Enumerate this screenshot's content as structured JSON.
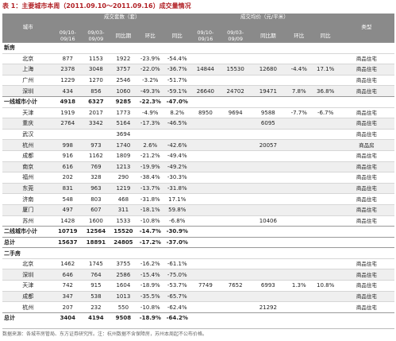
{
  "title": "表 1：主要城市本周（2011.09.10～2011.09.16）成交量情况",
  "header": {
    "city": "城市",
    "vol_group": "成交套数（套）",
    "price_group": "成交均价（元/平米）",
    "type": "类型",
    "period_a": "09/10-\n09/16",
    "period_b": "09/03-\n09/09",
    "yoy_period": "同比期",
    "wow": "环比",
    "yoy": "同比",
    "pa_price": "09/10-\n09/16",
    "pb_price": "09/03-\n09/09",
    "yoy_period_price": "同比期",
    "wow_price": "环比",
    "yoy_price": "同比"
  },
  "sections": [
    {
      "label": "新房",
      "rows": [
        [
          "北京",
          "877",
          "1153",
          "1922",
          "-23.9%",
          "-54.4%",
          "",
          "",
          "",
          "",
          "",
          "商品住宅"
        ],
        [
          "上海",
          "2378",
          "3048",
          "3757",
          "-22.0%",
          "-36.7%",
          "14844",
          "15530",
          "12680",
          "-4.4%",
          "17.1%",
          "商品住宅"
        ],
        [
          "广州",
          "1229",
          "1270",
          "2546",
          "-3.2%",
          "-51.7%",
          "",
          "",
          "",
          "",
          "",
          "商品住宅"
        ],
        [
          "深圳",
          "434",
          "856",
          "1060",
          "-49.3%",
          "-59.1%",
          "26640",
          "24702",
          "19471",
          "7.8%",
          "36.8%",
          "商品住宅"
        ]
      ],
      "subtotal": [
        "一线城市小计",
        "4918",
        "6327",
        "9285",
        "-22.3%",
        "-47.0%",
        "",
        "",
        "",
        "",
        "",
        ""
      ],
      "rows2": [
        [
          "天津",
          "1919",
          "2017",
          "1773",
          "-4.9%",
          "8.2%",
          "8950",
          "9694",
          "9588",
          "-7.7%",
          "-6.7%",
          "商品住宅"
        ],
        [
          "重庆",
          "2764",
          "3342",
          "5164",
          "-17.3%",
          "-46.5%",
          "",
          "",
          "6095",
          "",
          "",
          "商品住宅"
        ],
        [
          "武汉",
          "",
          "",
          "3694",
          "",
          "",
          "",
          "",
          "",
          "",
          "",
          "商品住宅"
        ],
        [
          "杭州",
          "998",
          "973",
          "1740",
          "2.6%",
          "-42.6%",
          "",
          "",
          "20057",
          "",
          "",
          "商品房"
        ],
        [
          "成都",
          "916",
          "1162",
          "1809",
          "-21.2%",
          "-49.4%",
          "",
          "",
          "",
          "",
          "",
          "商品住宅"
        ],
        [
          "南京",
          "616",
          "769",
          "1213",
          "-19.9%",
          "-49.2%",
          "",
          "",
          "",
          "",
          "",
          "商品住宅"
        ],
        [
          "福州",
          "202",
          "328",
          "290",
          "-38.4%",
          "-30.3%",
          "",
          "",
          "",
          "",
          "",
          "商品住宅"
        ],
        [
          "东莞",
          "831",
          "963",
          "1219",
          "-13.7%",
          "-31.8%",
          "",
          "",
          "",
          "",
          "",
          "商品住宅"
        ],
        [
          "济南",
          "548",
          "803",
          "468",
          "-31.8%",
          "17.1%",
          "",
          "",
          "",
          "",
          "",
          "商品住宅"
        ],
        [
          "厦门",
          "497",
          "607",
          "311",
          "-18.1%",
          "59.8%",
          "",
          "",
          "",
          "",
          "",
          "商品住宅"
        ],
        [
          "苏州",
          "1428",
          "1600",
          "1533",
          "-10.8%",
          "-6.8%",
          "",
          "",
          "10406",
          "",
          "",
          "商品住宅"
        ]
      ],
      "subtotal2": [
        "二线城市小计",
        "10719",
        "12564",
        "15520",
        "-14.7%",
        "-30.9%",
        "",
        "",
        "",
        "",
        "",
        ""
      ],
      "total": [
        "总计",
        "15637",
        "18891",
        "24805",
        "-17.2%",
        "-37.0%",
        "",
        "",
        "",
        "",
        "",
        ""
      ]
    },
    {
      "label": "二手房",
      "rows": [
        [
          "北京",
          "1462",
          "1745",
          "3755",
          "-16.2%",
          "-61.1%",
          "",
          "",
          "",
          "",
          "",
          "商品住宅"
        ],
        [
          "深圳",
          "646",
          "764",
          "2586",
          "-15.4%",
          "-75.0%",
          "",
          "",
          "",
          "",
          "",
          "商品住宅"
        ],
        [
          "天津",
          "742",
          "915",
          "1604",
          "-18.9%",
          "-53.7%",
          "7749",
          "7652",
          "6993",
          "1.3%",
          "10.8%",
          "商品住宅"
        ],
        [
          "成都",
          "347",
          "538",
          "1013",
          "-35.5%",
          "-65.7%",
          "",
          "",
          "",
          "",
          "",
          "商品住宅"
        ],
        [
          "杭州",
          "207",
          "232",
          "550",
          "-10.8%",
          "-62.4%",
          "",
          "",
          "21292",
          "",
          "",
          "商品住宅"
        ]
      ],
      "total": [
        "总计",
        "3404",
        "4194",
        "9508",
        "-18.9%",
        "-64.2%",
        "",
        "",
        "",
        "",
        "",
        ""
      ]
    }
  ],
  "footer": "数据来源：各城市房管局、东方证券研究所。注：杭州数据不含保障房，苏州本周起不公布价格。"
}
